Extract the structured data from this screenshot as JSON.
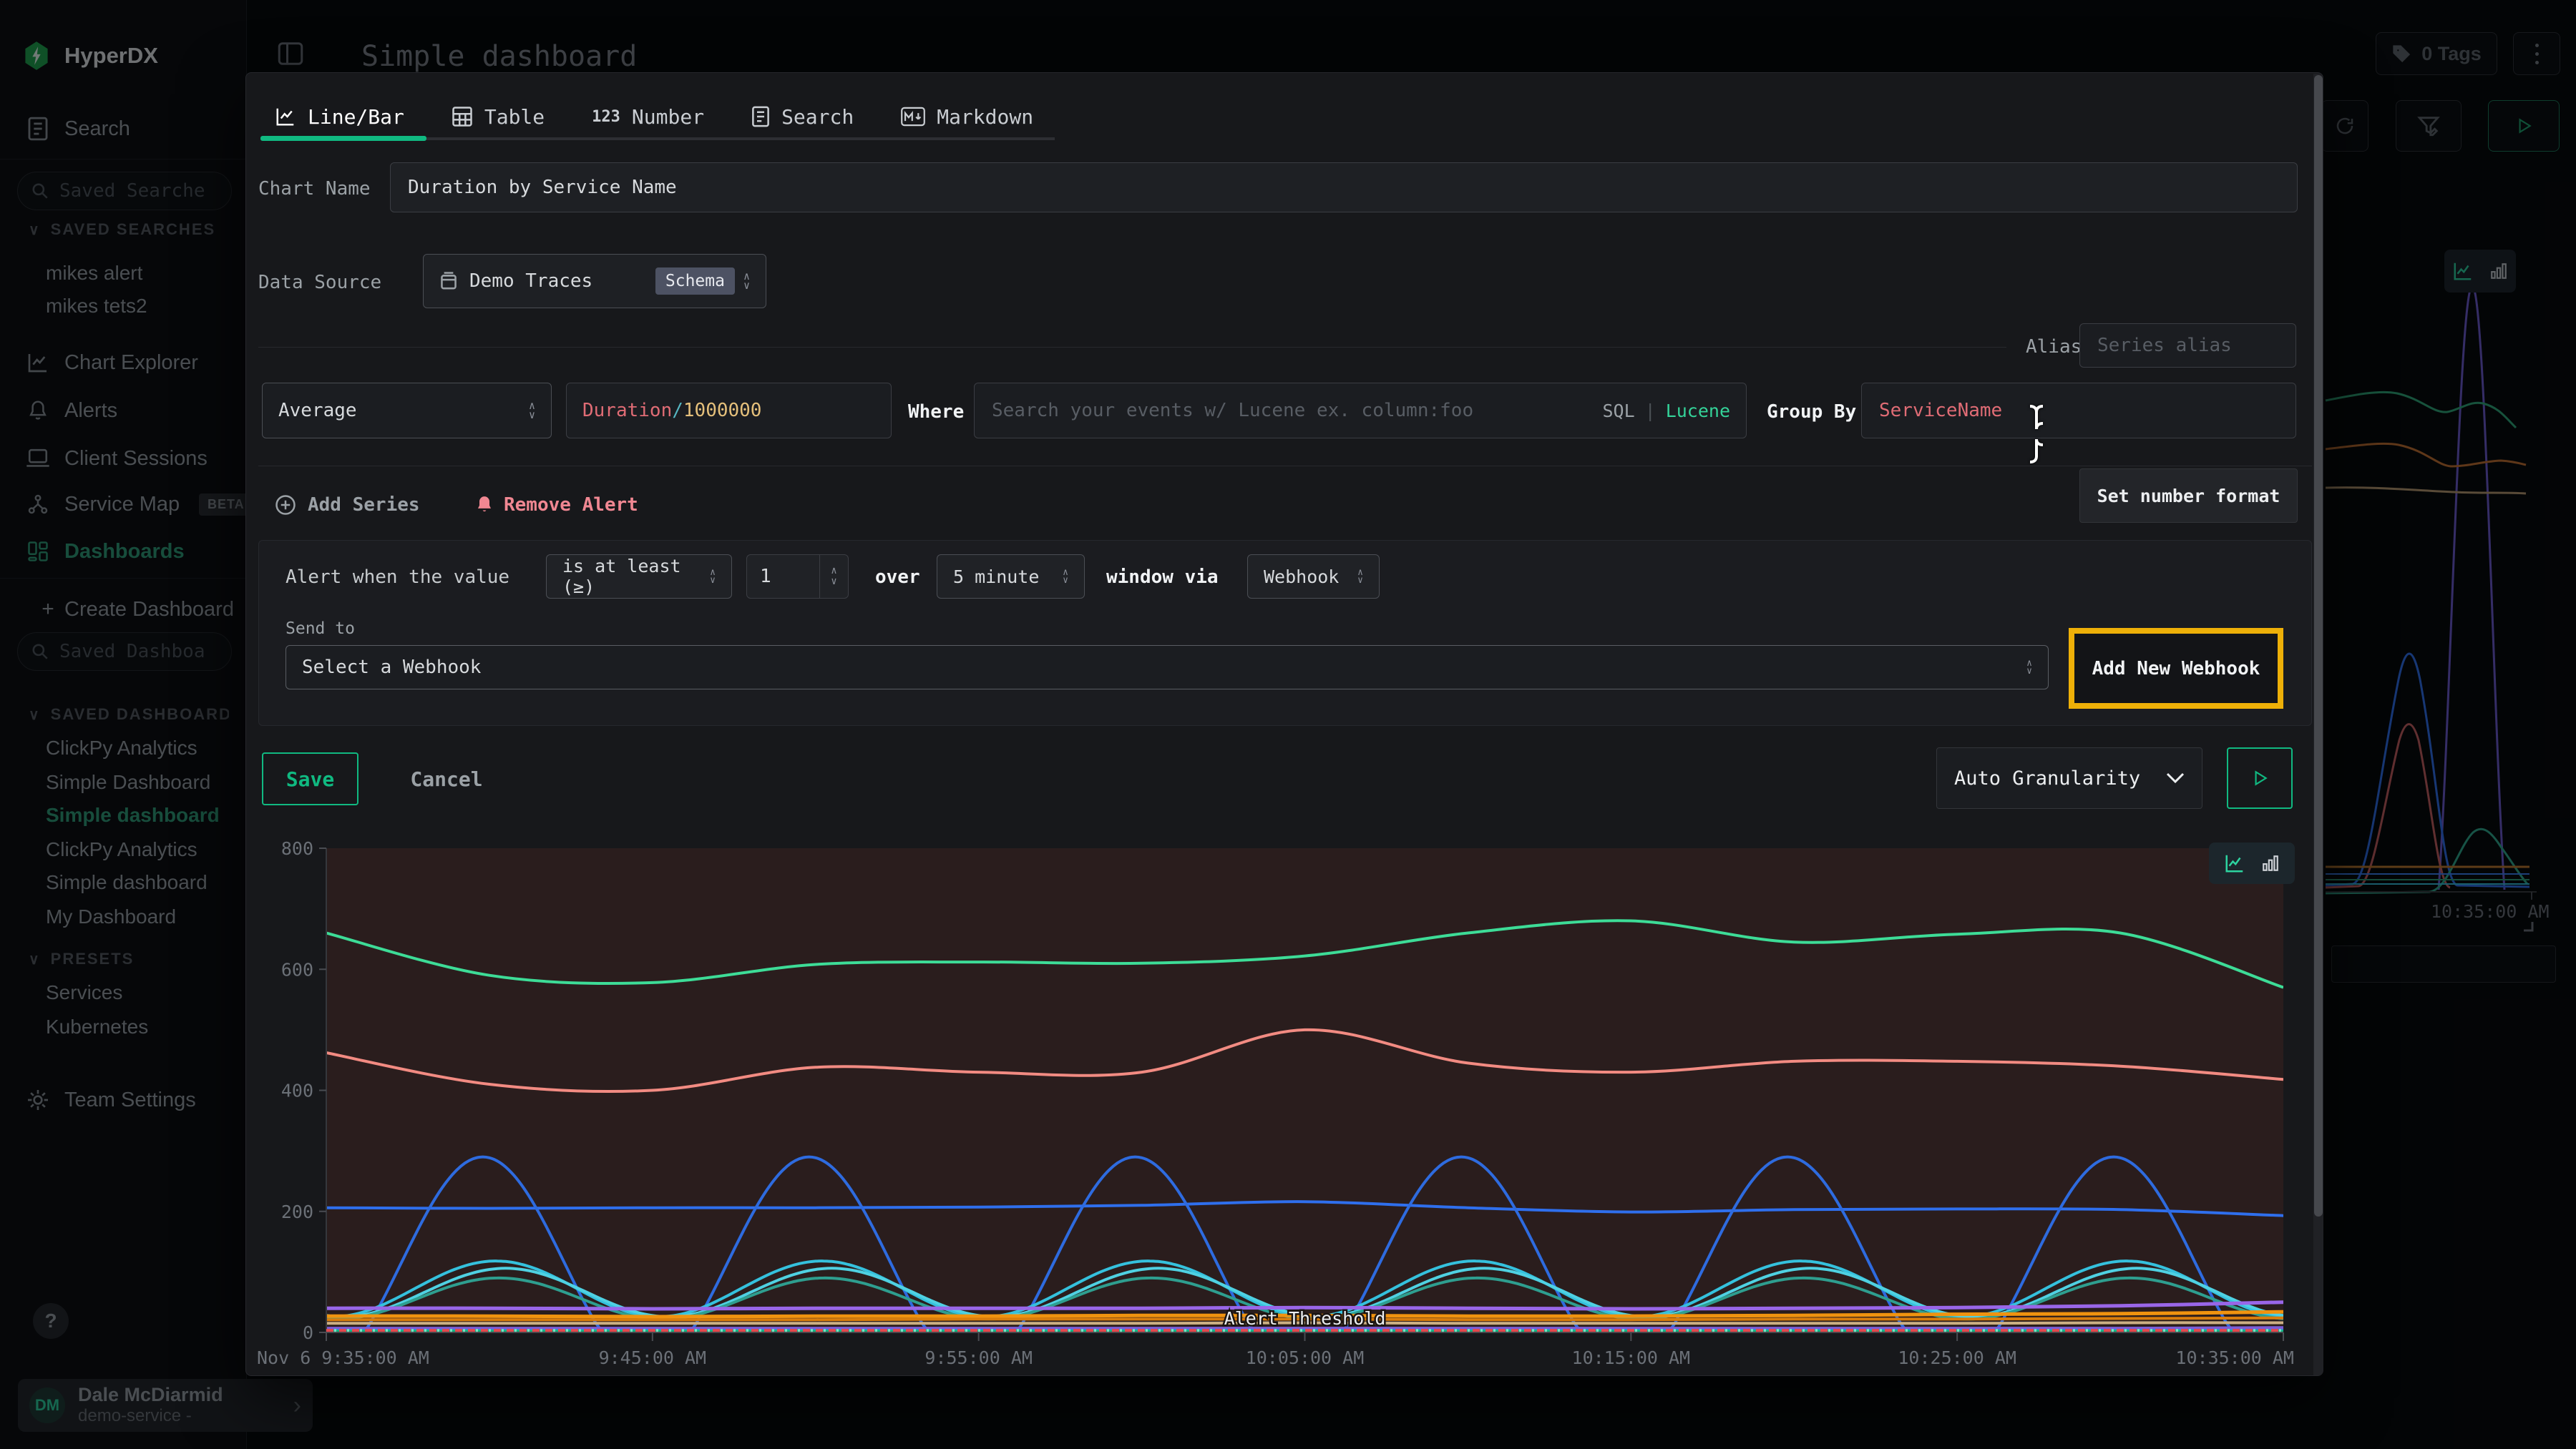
{
  "brand": {
    "name": "HyperDX"
  },
  "topbar": {
    "title": "Simple dashboard",
    "tags_button": "0 Tags"
  },
  "sidebar": {
    "search_item": "Search",
    "saved_searches": {
      "placeholder": "Saved Searches",
      "header": "SAVED SEARCHES",
      "items": [
        "mikes alert",
        "mikes tets2"
      ]
    },
    "nav": [
      {
        "label": "Chart Explorer"
      },
      {
        "label": "Alerts"
      },
      {
        "label": "Client Sessions"
      },
      {
        "label": "Service Map",
        "badge": "BETA"
      },
      {
        "label": "Dashboards"
      }
    ],
    "create_dashboard": "Create Dashboard",
    "saved_dashboards": {
      "placeholder": "Saved Dashboards",
      "header": "SAVED DASHBOARDS",
      "items": [
        "ClickPy Analytics",
        "Simple Dashboard",
        "Simple dashboard",
        "ClickPy Analytics",
        "Simple dashboard",
        "My Dashboard"
      ]
    },
    "presets": {
      "header": "PRESETS",
      "items": [
        "Services",
        "Kubernetes"
      ]
    },
    "team_settings": "Team Settings",
    "help": "?",
    "user": {
      "initials": "DM",
      "name": "Dale McDiarmid",
      "subtitle": "demo-service -"
    }
  },
  "modal": {
    "tabs": [
      {
        "label": "Line/Bar"
      },
      {
        "label": "Table"
      },
      {
        "label": "Number"
      },
      {
        "label": "Search"
      },
      {
        "label": "Markdown"
      }
    ],
    "chart_name": {
      "label": "Chart Name",
      "value": "Duration by Service Name"
    },
    "data_source": {
      "label": "Data Source",
      "value": "Demo Traces",
      "badge": "Schema"
    },
    "alias": {
      "label": "Alias",
      "placeholder": "Series alias"
    },
    "aggregation": {
      "function": "Average",
      "expression": {
        "field": "Duration",
        "operator": "/",
        "value": "1000000"
      },
      "where_label": "Where",
      "search_placeholder": "Search your events w/ Lucene ex. column:foo",
      "sql_label": "SQL",
      "divider": "|",
      "lucene_label": "Lucene",
      "group_by_label": "Group By",
      "group_by_value": "ServiceName"
    },
    "actions": {
      "add_series": "Add Series",
      "remove_alert": "Remove Alert",
      "set_number_format": "Set number format"
    },
    "alert": {
      "prefix": "Alert when the value",
      "condition": "is at least (≥)",
      "threshold_value": "1",
      "over_label": "over",
      "window": "5 minute",
      "via_label": "window via",
      "channel": "Webhook",
      "send_to_label": "Send to",
      "webhook_placeholder": "Select a Webhook",
      "add_new_webhook": "Add New Webhook"
    },
    "footer": {
      "save": "Save",
      "cancel": "Cancel",
      "granularity": "Auto Granularity"
    }
  },
  "backdrop_chart": {
    "x_label": "10:35:00 AM"
  },
  "chart_data": {
    "type": "line",
    "title": "Duration by Service Name",
    "xlabel": "",
    "ylabel": "",
    "ylim": [
      0,
      800
    ],
    "yticks": [
      800,
      600,
      400,
      200,
      0
    ],
    "xticks": [
      "Nov 6 9:35:00 AM",
      "9:45:00 AM",
      "9:55:00 AM",
      "10:05:00 AM",
      "10:15:00 AM",
      "10:25:00 AM",
      "10:35:00 AM"
    ],
    "x_span_minutes": 60,
    "grid": false,
    "legend": "none",
    "alert_threshold": {
      "value": 1,
      "label": "Alert Threshold"
    },
    "series": [
      {
        "name": "green-top",
        "kind": "points",
        "color": "#3ddc97",
        "width": 4,
        "values": [
          660,
          590,
          578,
          608,
          612,
          610,
          622,
          660,
          680,
          645,
          658,
          660,
          570
        ]
      },
      {
        "name": "salmon",
        "kind": "points",
        "color": "#f28b82",
        "width": 4,
        "values": [
          462,
          410,
          400,
          438,
          430,
          430,
          500,
          445,
          430,
          448,
          448,
          440,
          418
        ]
      },
      {
        "name": "blue-flat",
        "kind": "points",
        "color": "#2f6fed",
        "width": 4,
        "values": [
          206,
          205,
          206,
          206,
          207,
          210,
          216,
          206,
          199,
          203,
          204,
          203,
          193
        ]
      },
      {
        "name": "blue-wave",
        "kind": "sine",
        "color": "#2e6bdf",
        "width": 4,
        "center": 115,
        "amplitude": 175,
        "period_min": 10,
        "peak_min": 4.8
      },
      {
        "name": "cyan-wave-1",
        "kind": "sine",
        "color": "#35c1dd",
        "width": 4,
        "center": 72,
        "amplitude": 46,
        "period_min": 10,
        "peak_min": 5.2
      },
      {
        "name": "cyan-wave-2",
        "kind": "sine",
        "color": "#4fd1e2",
        "width": 4,
        "center": 66,
        "amplitude": 40,
        "period_min": 10,
        "peak_min": 5.5
      },
      {
        "name": "teal-wave",
        "kind": "sine",
        "color": "#2e9e8f",
        "width": 4,
        "center": 56,
        "amplitude": 34,
        "period_min": 10,
        "peak_min": 5.3
      },
      {
        "name": "violet-flat",
        "kind": "points",
        "color": "#9966e8",
        "width": 5,
        "values": [
          40,
          40,
          39,
          40,
          40,
          40,
          41,
          40,
          39,
          40,
          41,
          44,
          50
        ]
      },
      {
        "name": "orange-flat-1",
        "kind": "points",
        "color": "#f0930f",
        "width": 5,
        "values": [
          27,
          27,
          26,
          27,
          27,
          28,
          28,
          27,
          27,
          28,
          30,
          31,
          34
        ]
      },
      {
        "name": "orange-flat-2",
        "kind": "points",
        "color": "#d97d0c",
        "width": 4,
        "values": [
          21,
          21,
          21,
          21,
          22,
          22,
          22,
          21,
          21,
          22,
          22,
          23,
          24
        ]
      },
      {
        "name": "tan-flat",
        "kind": "points",
        "color": "#cbaf83",
        "width": 4,
        "values": [
          15,
          15,
          15,
          15,
          15,
          15,
          16,
          15,
          15,
          15,
          15,
          16,
          16
        ]
      },
      {
        "name": "violet-low",
        "kind": "points",
        "color": "#7c5cd6",
        "width": 4,
        "values": [
          7,
          7,
          7,
          7,
          7,
          7,
          7,
          7,
          7,
          7,
          7,
          7,
          8
        ]
      },
      {
        "name": "blue-low",
        "kind": "points",
        "color": "#3b82f6",
        "width": 3,
        "values": [
          4,
          4,
          4,
          4,
          4,
          4,
          4,
          4,
          4,
          4,
          4,
          4,
          4
        ]
      },
      {
        "name": "green-low",
        "kind": "points",
        "color": "#10b981",
        "width": 3,
        "values": [
          2.5,
          2.5,
          2.5,
          2.5,
          2.5,
          2.5,
          2.5,
          2.5,
          2.5,
          2.5,
          2.5,
          2.5,
          2.5
        ]
      }
    ]
  }
}
